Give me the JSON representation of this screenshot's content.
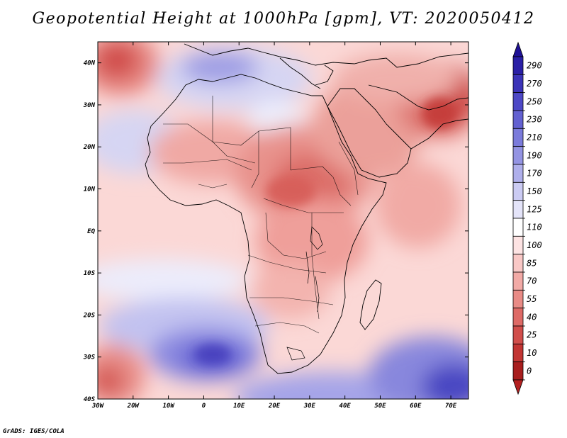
{
  "title": "Geopotential Height at 1000hPa [gpm], VT: 2020050412",
  "credit": "GrADS: IGES/COLA",
  "map": {
    "lon_range": [
      -30,
      75
    ],
    "lat_range": [
      -40,
      45
    ],
    "x_ticks": [
      "30W",
      "20W",
      "10W",
      "0",
      "10E",
      "20E",
      "30E",
      "40E",
      "50E",
      "60E",
      "70E"
    ],
    "x_tick_values": [
      -30,
      -20,
      -10,
      0,
      10,
      20,
      30,
      40,
      50,
      60,
      70
    ],
    "y_ticks": [
      "40S",
      "30S",
      "20S",
      "10S",
      "EQ",
      "10N",
      "20N",
      "30N",
      "40N"
    ],
    "y_tick_values": [
      -40,
      -30,
      -20,
      -10,
      0,
      10,
      20,
      30,
      40
    ]
  },
  "colorbar": {
    "labels": [
      "290",
      "270",
      "250",
      "230",
      "210",
      "190",
      "170",
      "150",
      "125",
      "110",
      "100",
      "85",
      "70",
      "55",
      "40",
      "25",
      "10",
      "0"
    ],
    "colors": [
      "#2a1fa6",
      "#3b33b8",
      "#4d48c6",
      "#6361d1",
      "#7b7bdb",
      "#9494e3",
      "#afafeb",
      "#cbcbf3",
      "#e4e4f9",
      "#ffffff",
      "#fde3e3",
      "#f9c8c6",
      "#f2aaa6",
      "#e98b86",
      "#de6a66",
      "#d14e4b",
      "#c23533",
      "#a81e1e"
    ],
    "top_color": "#1f1196",
    "bottom_color": "#b42020"
  }
}
